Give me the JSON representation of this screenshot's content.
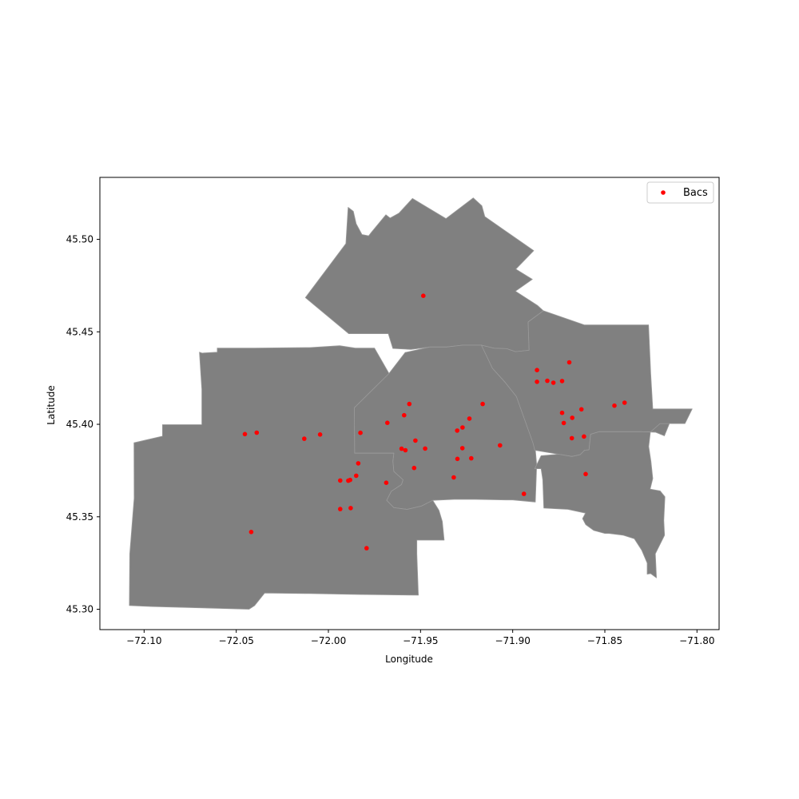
{
  "chart_data": {
    "type": "scatter",
    "title": "",
    "xlabel": "Longitude",
    "ylabel": "Latitude",
    "xlim": [
      -72.124,
      -71.788
    ],
    "ylim": [
      45.289,
      45.5335
    ],
    "xticks": [
      -72.1,
      -72.05,
      -72.0,
      -71.95,
      -71.9,
      -71.85,
      -71.8
    ],
    "xtick_labels": [
      "−72.10",
      "−72.05",
      "−72.00",
      "−71.95",
      "−71.90",
      "−71.85",
      "−71.80"
    ],
    "yticks": [
      45.3,
      45.35,
      45.4,
      45.45,
      45.5
    ],
    "ytick_labels": [
      "45.30",
      "45.35",
      "45.40",
      "45.45",
      "45.50"
    ],
    "grid": false,
    "legend": {
      "position": "top-right",
      "entries": [
        "Bacs"
      ]
    },
    "colors": {
      "districts": "#808080",
      "district_borders": "#9a9a9a",
      "points": "#ff0000"
    },
    "districts": [
      {
        "id": "north",
        "lonlat": [
          [
            -72.0125,
            45.4685
          ],
          [
            -71.9905,
            45.4977
          ],
          [
            -71.9893,
            45.5173
          ],
          [
            -71.9865,
            45.5152
          ],
          [
            -71.9849,
            45.5084
          ],
          [
            -71.9818,
            45.5026
          ],
          [
            -71.9782,
            45.5019
          ],
          [
            -71.9766,
            45.5039
          ],
          [
            -71.9688,
            45.5133
          ],
          [
            -71.9665,
            45.5115
          ],
          [
            -71.9617,
            45.5142
          ],
          [
            -71.9544,
            45.5221
          ],
          [
            -71.9362,
            45.5112
          ],
          [
            -71.9214,
            45.5224
          ],
          [
            -71.9167,
            45.5181
          ],
          [
            -71.9151,
            45.5123
          ],
          [
            -71.8886,
            45.4939
          ],
          [
            -71.8983,
            45.4839
          ],
          [
            -71.8893,
            45.4784
          ],
          [
            -71.8985,
            45.472
          ],
          [
            -71.8866,
            45.4643
          ],
          [
            -71.8834,
            45.4614
          ],
          [
            -71.8916,
            45.4553
          ],
          [
            -71.8911,
            45.44
          ],
          [
            -71.8985,
            45.4393
          ],
          [
            -71.9032,
            45.4409
          ],
          [
            -71.91,
            45.4411
          ],
          [
            -71.917,
            45.4428
          ],
          [
            -71.9273,
            45.4428
          ],
          [
            -71.9359,
            45.4418
          ],
          [
            -71.945,
            45.4418
          ],
          [
            -71.9552,
            45.4405
          ],
          [
            -71.965,
            45.441
          ],
          [
            -71.9675,
            45.449
          ],
          [
            -71.978,
            45.449
          ],
          [
            -71.989,
            45.449
          ]
        ]
      },
      {
        "id": "center",
        "lonlat": [
          [
            -71.9859,
            45.409
          ],
          [
            -71.9671,
            45.4275
          ],
          [
            -71.9584,
            45.4388
          ],
          [
            -71.945,
            45.4418
          ],
          [
            -71.9359,
            45.4418
          ],
          [
            -71.9273,
            45.4428
          ],
          [
            -71.917,
            45.4428
          ],
          [
            -71.914,
            45.4374
          ],
          [
            -71.911,
            45.4303
          ],
          [
            -71.904,
            45.4226
          ],
          [
            -71.898,
            45.415
          ],
          [
            -71.8908,
            45.404
          ],
          [
            -71.888,
            45.39
          ],
          [
            -71.887,
            45.378
          ],
          [
            -71.8877,
            45.358
          ],
          [
            -71.9,
            45.3591
          ],
          [
            -71.9035,
            45.3591
          ],
          [
            -71.92,
            45.3594
          ],
          [
            -71.9251,
            45.3594
          ],
          [
            -71.927,
            45.3594
          ],
          [
            -71.9303,
            45.3594
          ],
          [
            -71.9318,
            45.3594
          ],
          [
            -71.9434,
            45.3589
          ],
          [
            -71.9495,
            45.3558
          ],
          [
            -71.9573,
            45.354
          ],
          [
            -71.9645,
            45.3549
          ],
          [
            -71.9684,
            45.3589
          ],
          [
            -71.9659,
            45.3638
          ],
          [
            -71.9604,
            45.3674
          ],
          [
            -71.9595,
            45.37
          ],
          [
            -71.9645,
            45.3745
          ],
          [
            -71.965,
            45.38
          ],
          [
            -71.9645,
            45.3844
          ],
          [
            -71.976,
            45.3844
          ],
          [
            -71.9858,
            45.3844
          ]
        ]
      },
      {
        "id": "west",
        "lonlat": [
          [
            -72.0686,
            45.4385
          ],
          [
            -72.0603,
            45.439
          ],
          [
            -72.0603,
            45.4412
          ],
          [
            -72.04,
            45.4412
          ],
          [
            -72.01,
            45.4415
          ],
          [
            -71.9939,
            45.4425
          ],
          [
            -71.9854,
            45.4412
          ],
          [
            -71.975,
            45.4412
          ],
          [
            -71.9671,
            45.4275
          ],
          [
            -71.9859,
            45.409
          ],
          [
            -71.9858,
            45.3844
          ],
          [
            -71.976,
            45.3844
          ],
          [
            -71.9645,
            45.3844
          ],
          [
            -71.965,
            45.38
          ],
          [
            -71.9645,
            45.3745
          ],
          [
            -71.9595,
            45.37
          ],
          [
            -71.9604,
            45.3674
          ],
          [
            -71.9659,
            45.3638
          ],
          [
            -71.9684,
            45.3589
          ],
          [
            -71.9645,
            45.3549
          ],
          [
            -71.9573,
            45.354
          ],
          [
            -71.9495,
            45.3558
          ],
          [
            -71.9434,
            45.3589
          ],
          [
            -71.94,
            45.3535
          ],
          [
            -71.9382,
            45.3474
          ],
          [
            -71.9372,
            45.3374
          ],
          [
            -71.9445,
            45.3374
          ],
          [
            -71.9485,
            45.3374
          ],
          [
            -71.952,
            45.3374
          ],
          [
            -71.952,
            45.33
          ],
          [
            -71.9512,
            45.3076
          ],
          [
            -71.984,
            45.308
          ],
          [
            -72.01,
            45.3085
          ],
          [
            -72.0346,
            45.3088
          ],
          [
            -72.04,
            45.302
          ],
          [
            -72.0431,
            45.3
          ],
          [
            -72.07,
            45.3008
          ],
          [
            -72.0957,
            45.3015
          ],
          [
            -72.108,
            45.302
          ],
          [
            -72.1078,
            45.33
          ],
          [
            -72.1054,
            45.36
          ],
          [
            -72.1055,
            45.39
          ],
          [
            -72.09,
            45.3936
          ],
          [
            -72.09,
            45.3998
          ],
          [
            -72.0687,
            45.3998
          ],
          [
            -72.0687,
            45.419
          ],
          [
            -72.07,
            45.439
          ]
        ]
      },
      {
        "id": "east",
        "lonlat": [
          [
            -71.9032,
            45.4409
          ],
          [
            -71.8985,
            45.4393
          ],
          [
            -71.8911,
            45.44
          ],
          [
            -71.8916,
            45.4553
          ],
          [
            -71.8834,
            45.4614
          ],
          [
            -71.861,
            45.4537
          ],
          [
            -71.8491,
            45.4537
          ],
          [
            -71.8263,
            45.4537
          ],
          [
            -71.8251,
            45.4275
          ],
          [
            -71.824,
            45.4083
          ],
          [
            -71.8026,
            45.4083
          ],
          [
            -71.8065,
            45.4004
          ],
          [
            -71.815,
            45.4004
          ],
          [
            -71.8177,
            45.3938
          ],
          [
            -71.8226,
            45.3958
          ],
          [
            -71.8307,
            45.396
          ],
          [
            -71.853,
            45.396
          ],
          [
            -71.8577,
            45.3946
          ],
          [
            -71.8586,
            45.3862
          ],
          [
            -71.861,
            45.386
          ],
          [
            -71.8633,
            45.3836
          ],
          [
            -71.8678,
            45.3826
          ],
          [
            -71.875,
            45.3838
          ],
          [
            -71.888,
            45.386
          ],
          [
            -71.889,
            45.39
          ],
          [
            -71.898,
            45.415
          ],
          [
            -71.904,
            45.4226
          ],
          [
            -71.911,
            45.4303
          ],
          [
            -71.917,
            45.4428
          ],
          [
            -71.91,
            45.4411
          ]
        ]
      },
      {
        "id": "southeast",
        "lonlat": [
          [
            -71.8846,
            45.383
          ],
          [
            -71.875,
            45.3838
          ],
          [
            -71.8678,
            45.3826
          ],
          [
            -71.8633,
            45.3836
          ],
          [
            -71.861,
            45.386
          ],
          [
            -71.8586,
            45.3862
          ],
          [
            -71.8577,
            45.3946
          ],
          [
            -71.853,
            45.396
          ],
          [
            -71.8307,
            45.396
          ],
          [
            -71.8226,
            45.3958
          ],
          [
            -71.8177,
            45.3938
          ],
          [
            -71.815,
            45.4004
          ],
          [
            -71.82,
            45.4004
          ],
          [
            -71.8253,
            45.3958
          ],
          [
            -71.8262,
            45.388
          ],
          [
            -71.825,
            45.38
          ],
          [
            -71.824,
            45.3707
          ],
          [
            -71.8254,
            45.365
          ],
          [
            -71.82,
            45.364
          ],
          [
            -71.8174,
            45.3608
          ],
          [
            -71.818,
            45.348
          ],
          [
            -71.8176,
            45.34
          ],
          [
            -71.8226,
            45.33
          ],
          [
            -71.822,
            45.317
          ],
          [
            -71.8251,
            45.3193
          ],
          [
            -71.827,
            45.319
          ],
          [
            -71.827,
            45.325
          ],
          [
            -71.83,
            45.332
          ],
          [
            -71.834,
            45.3381
          ],
          [
            -71.84,
            45.34
          ],
          [
            -71.848,
            45.341
          ],
          [
            -71.85,
            45.341
          ],
          [
            -71.856,
            45.3426
          ],
          [
            -71.8604,
            45.3458
          ],
          [
            -71.8621,
            45.349
          ],
          [
            -71.8605,
            45.352
          ],
          [
            -71.87,
            45.354
          ],
          [
            -71.8831,
            45.3547
          ],
          [
            -71.8837,
            45.37
          ],
          [
            -71.8846,
            45.376
          ],
          [
            -71.888,
            45.376
          ]
        ]
      }
    ],
    "series": [
      {
        "name": "Bacs",
        "points": [
          [
            -71.9485,
            45.4695
          ],
          [
            -71.8693,
            45.4335
          ],
          [
            -71.8868,
            45.4293
          ],
          [
            -71.8868,
            45.423
          ],
          [
            -71.8812,
            45.4235
          ],
          [
            -71.8779,
            45.4225
          ],
          [
            -71.8732,
            45.4234
          ],
          [
            -71.8627,
            45.4081
          ],
          [
            -71.8732,
            45.4062
          ],
          [
            -71.8677,
            45.4035
          ],
          [
            -71.8723,
            45.4007
          ],
          [
            -71.8448,
            45.4101
          ],
          [
            -71.8393,
            45.4117
          ],
          [
            -71.8679,
            45.3925
          ],
          [
            -71.8613,
            45.3934
          ],
          [
            -71.8604,
            45.3731
          ],
          [
            -71.9163,
            45.411
          ],
          [
            -71.9235,
            45.4031
          ],
          [
            -71.9272,
            45.3983
          ],
          [
            -71.9301,
            45.3966
          ],
          [
            -71.9561,
            45.411
          ],
          [
            -71.9589,
            45.4049
          ],
          [
            -71.968,
            45.4008
          ],
          [
            -71.9826,
            45.3954
          ],
          [
            -71.9528,
            45.3912
          ],
          [
            -71.9475,
            45.3869
          ],
          [
            -71.9273,
            45.3871
          ],
          [
            -71.9069,
            45.3886
          ],
          [
            -71.9603,
            45.3868
          ],
          [
            -71.9582,
            45.386
          ],
          [
            -71.93,
            45.3813
          ],
          [
            -71.9225,
            45.3816
          ],
          [
            -71.9838,
            45.3789
          ],
          [
            -71.9535,
            45.3764
          ],
          [
            -71.9849,
            45.3722
          ],
          [
            -71.9936,
            45.3696
          ],
          [
            -71.9892,
            45.3695
          ],
          [
            -71.9882,
            45.3699
          ],
          [
            -71.932,
            45.3713
          ],
          [
            -71.9686,
            45.3684
          ],
          [
            -71.8939,
            45.3624
          ],
          [
            -71.9936,
            45.3542
          ],
          [
            -71.9879,
            45.3547
          ],
          [
            -72.0419,
            45.3418
          ],
          [
            -71.9793,
            45.333
          ],
          [
            -72.0453,
            45.3947
          ],
          [
            -72.0389,
            45.3955
          ],
          [
            -72.0131,
            45.3922
          ],
          [
            -72.0045,
            45.3945
          ]
        ]
      }
    ]
  }
}
